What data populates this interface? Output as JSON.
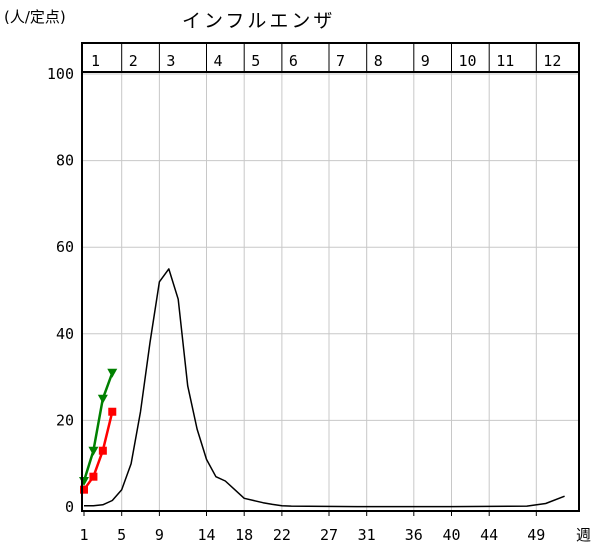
{
  "chart_data": {
    "type": "line",
    "title": "インフルエンザ",
    "ylabel": "(人/定点)",
    "xlabel": "週",
    "ylim": [
      0,
      100
    ],
    "xlim": [
      1,
      53
    ],
    "y_ticks": [
      0,
      20,
      40,
      60,
      80,
      100
    ],
    "x_tick_labels": [
      1,
      5,
      9,
      14,
      18,
      22,
      27,
      31,
      36,
      40,
      44,
      49
    ],
    "month_labels": [
      "1",
      "2",
      "3",
      "4",
      "5",
      "6",
      "7",
      "8",
      "9",
      "10",
      "11",
      "12"
    ],
    "month_start_weeks": [
      1,
      5,
      9,
      14,
      18,
      22,
      27,
      31,
      36,
      40,
      44,
      49
    ],
    "grid": true,
    "series": [
      {
        "color": "#000000",
        "marker": "none",
        "x": [
          1,
          2,
          3,
          4,
          5,
          6,
          7,
          8,
          9,
          10,
          11,
          12,
          13,
          14,
          15,
          16,
          17,
          18,
          19,
          20,
          21,
          22,
          23,
          30,
          40,
          48,
          50,
          52
        ],
        "values": [
          0.3,
          0.3,
          0.5,
          1.5,
          4,
          10,
          22,
          38,
          52,
          55,
          48,
          28,
          18,
          11,
          7,
          6,
          4,
          2,
          1.5,
          1,
          0.6,
          0.3,
          0.2,
          0.1,
          0.1,
          0.2,
          0.8,
          2.5
        ]
      },
      {
        "color": "#008000",
        "marker": "triangle-down",
        "x": [
          1,
          2,
          3,
          4
        ],
        "values": [
          6,
          13,
          25,
          31
        ]
      },
      {
        "color": "#ff0000",
        "marker": "square",
        "x": [
          1,
          2,
          3,
          4
        ],
        "values": [
          4,
          7,
          13,
          22
        ]
      }
    ]
  }
}
